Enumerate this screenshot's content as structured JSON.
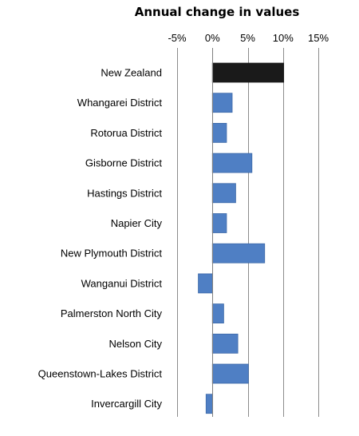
{
  "chart_data": {
    "type": "bar",
    "orientation": "horizontal",
    "title": "Annual change in values",
    "xlabel": "",
    "ylabel": "",
    "xlim": [
      -5,
      15
    ],
    "ticks": [
      -5,
      0,
      5,
      10,
      15
    ],
    "tick_labels": [
      "-5%",
      "0%",
      "5%",
      "10%",
      "15%"
    ],
    "axis_position": "top",
    "grid": true,
    "legend": "none",
    "categories": [
      "New Zealand",
      "Whangarei District",
      "Rotorua District",
      "Gisborne District",
      "Hastings District",
      "Napier City",
      "New Plymouth District",
      "Wanganui District",
      "Palmerston North City",
      "Nelson City",
      "Queenstown-Lakes District",
      "Invercargill City"
    ],
    "values": [
      10.1,
      2.8,
      2.0,
      5.6,
      3.3,
      2.0,
      7.4,
      -2.0,
      1.6,
      3.6,
      5.1,
      -0.9
    ],
    "highlight_index": 0,
    "colors": {
      "highlight": "#1a1a1a",
      "bar": "#4f7fc4",
      "bar_stroke": "#3e6aa8"
    }
  }
}
